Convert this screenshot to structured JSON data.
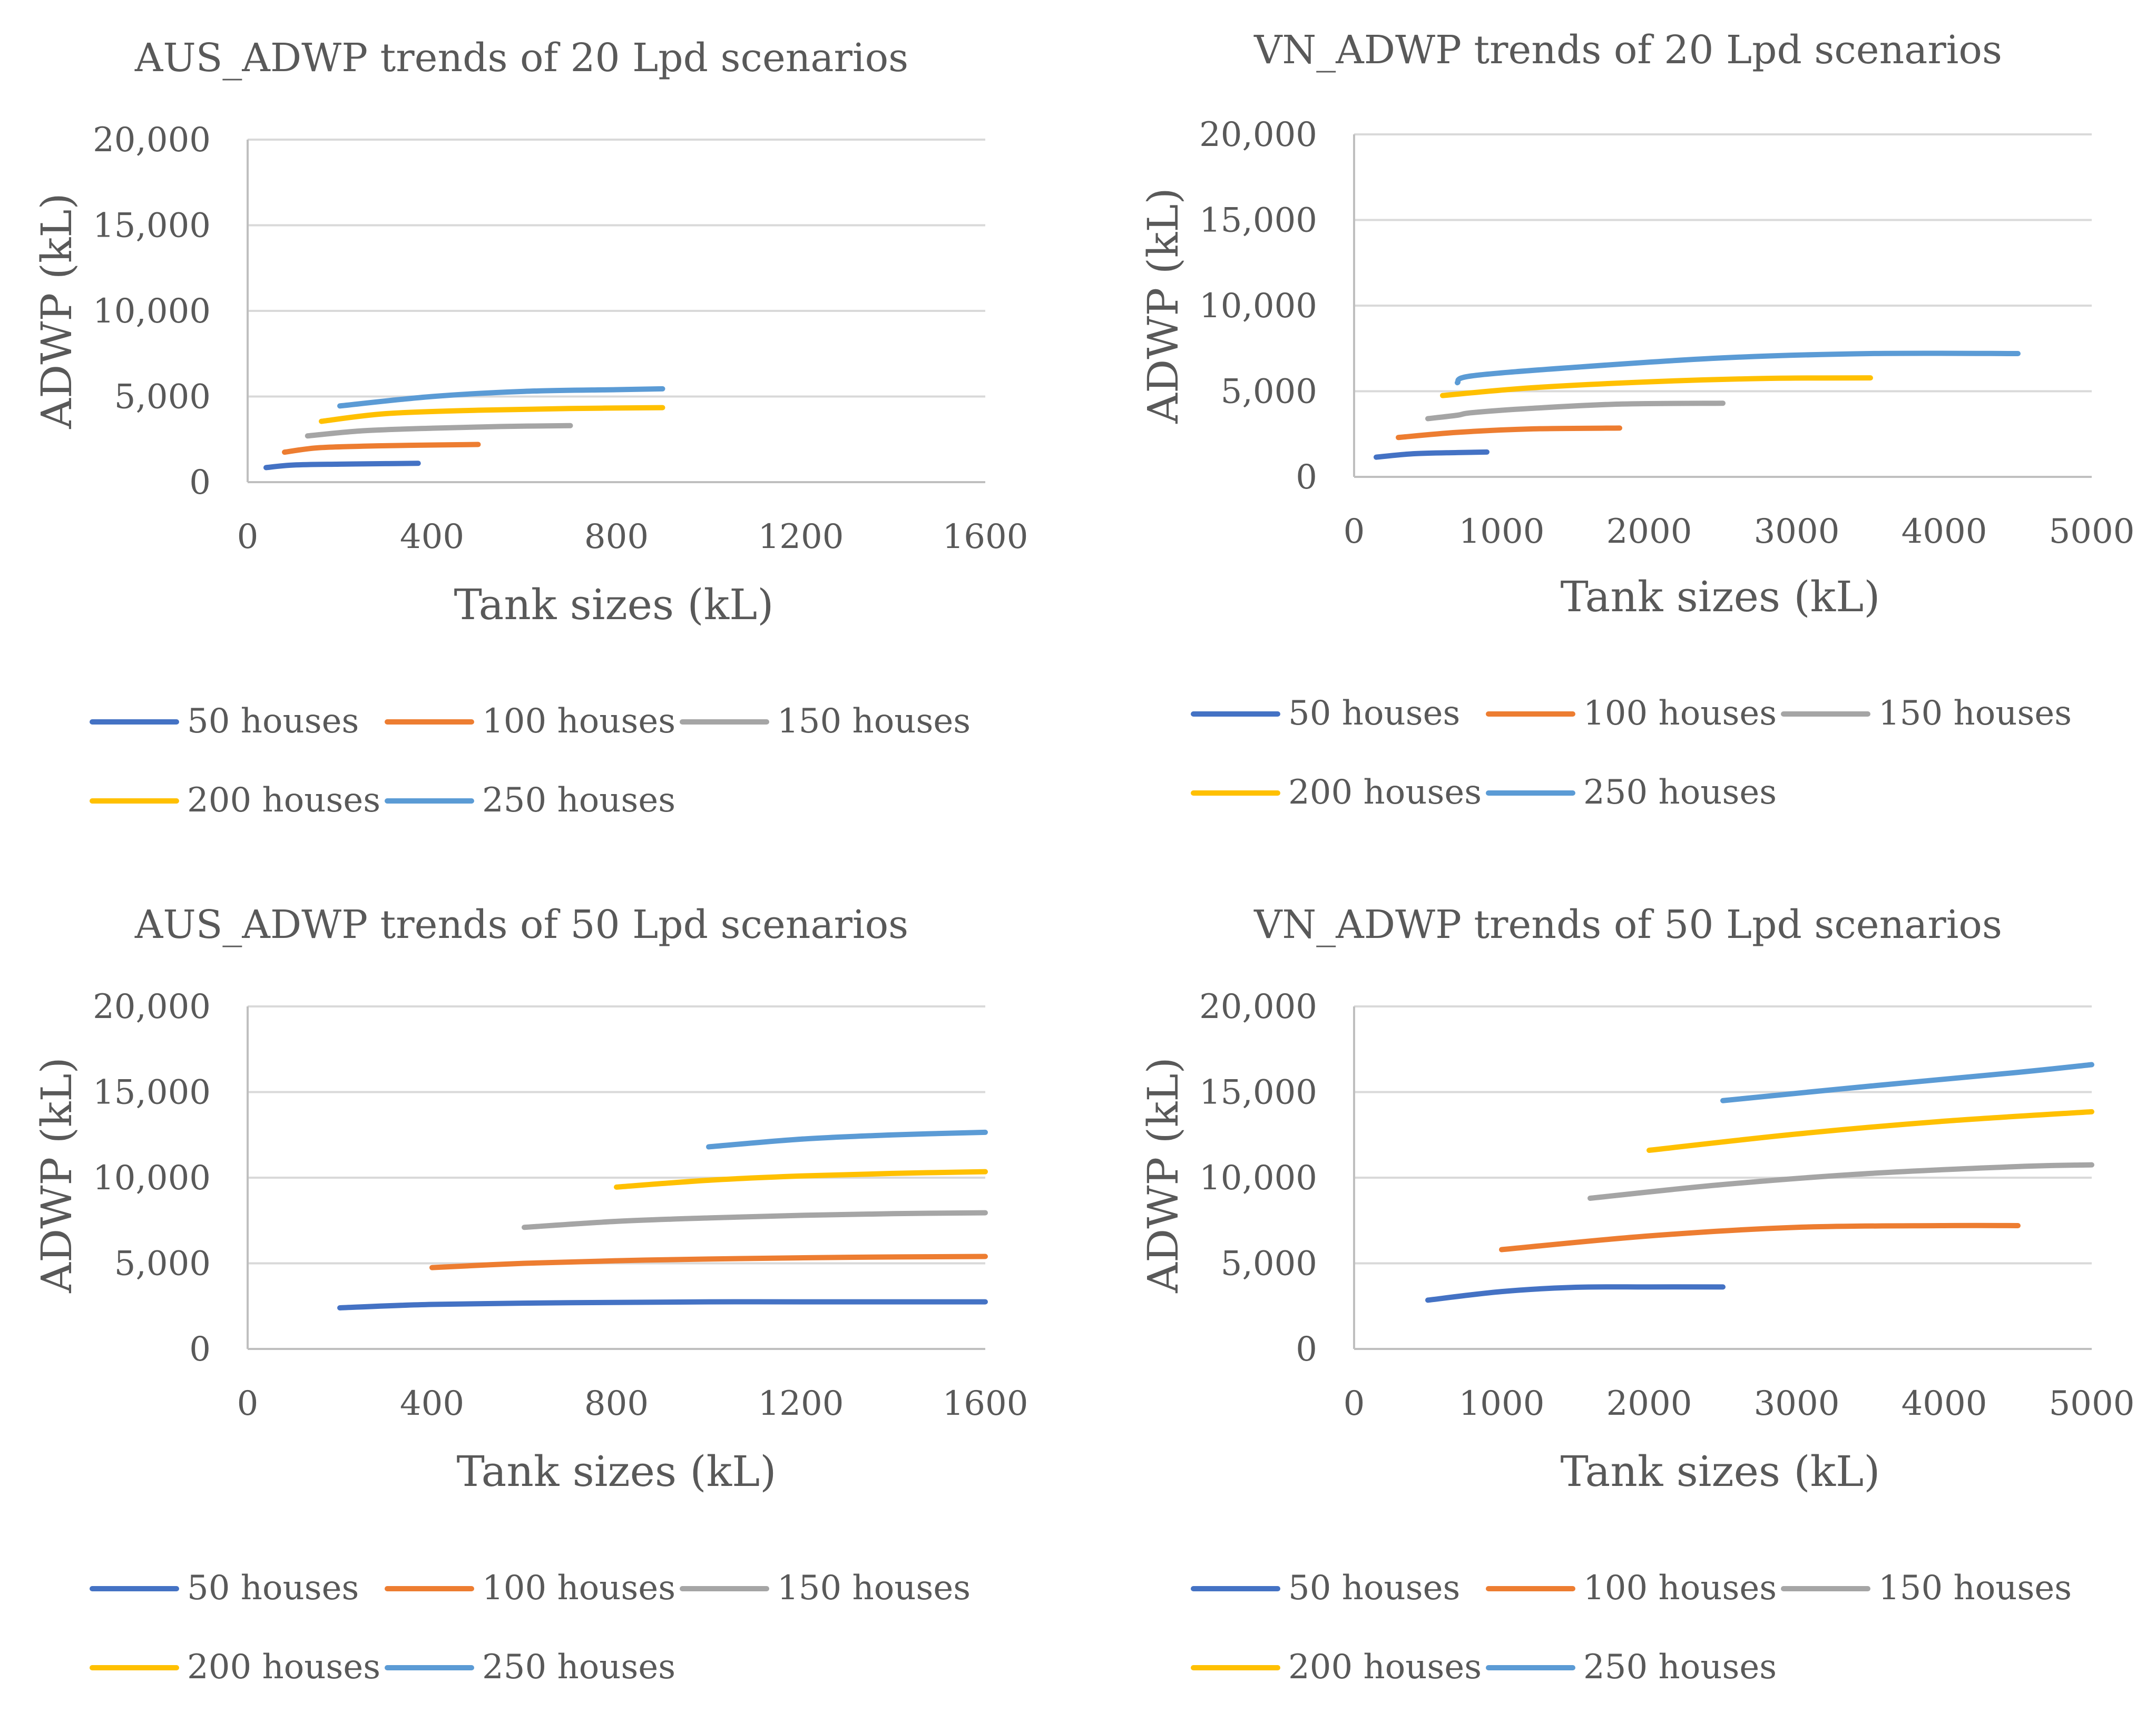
{
  "chart_data": [
    {
      "type": "line",
      "title": "AUS_ADWP trends of 20 Lpd scenarios",
      "xlabel": "Tank sizes (kL)",
      "ylabel": "ADWP (kL)",
      "xlim": [
        0,
        1600
      ],
      "ylim": [
        0,
        20000
      ],
      "xticks": [
        0,
        400,
        800,
        1200,
        1600
      ],
      "xtick_labels": [
        "0",
        "400",
        "800",
        "1200",
        "1600"
      ],
      "yticks": [
        0,
        5000,
        10000,
        15000,
        20000
      ],
      "ytick_labels": [
        "0",
        "5,000",
        "10,000",
        "15,000",
        "20,000"
      ],
      "legend": "bottom",
      "series": [
        {
          "name": "50 houses",
          "color": "#4472C4",
          "x": [
            40,
            100,
            200,
            300,
            370
          ],
          "y": [
            850,
            1000,
            1050,
            1080,
            1100
          ]
        },
        {
          "name": "100 houses",
          "color": "#ED7D31",
          "x": [
            80,
            150,
            250,
            350,
            500
          ],
          "y": [
            1750,
            2000,
            2100,
            2150,
            2200
          ]
        },
        {
          "name": "150 houses",
          "color": "#A5A5A5",
          "x": [
            130,
            250,
            400,
            550,
            700
          ],
          "y": [
            2700,
            3000,
            3150,
            3250,
            3300
          ]
        },
        {
          "name": "200 houses",
          "color": "#FFC000",
          "x": [
            160,
            300,
            500,
            700,
            900
          ],
          "y": [
            3550,
            4000,
            4200,
            4300,
            4350
          ]
        },
        {
          "name": "250 houses",
          "color": "#5B9BD5",
          "x": [
            200,
            400,
            600,
            800,
            900
          ],
          "y": [
            4450,
            5000,
            5300,
            5400,
            5450
          ]
        }
      ]
    },
    {
      "type": "line",
      "title": "VN_ADWP trends of 20 Lpd scenarios",
      "xlabel": "Tank sizes (kL)",
      "ylabel": "ADWP (kL)",
      "xlim": [
        0,
        5000
      ],
      "ylim": [
        0,
        20000
      ],
      "xticks": [
        0,
        1000,
        2000,
        3000,
        4000,
        5000
      ],
      "xtick_labels": [
        "0",
        "1000",
        "2000",
        "3000",
        "4000",
        "5000"
      ],
      "yticks": [
        0,
        5000,
        10000,
        15000,
        20000
      ],
      "ytick_labels": [
        "0",
        "5,000",
        "10,000",
        "15,000",
        "20,000"
      ],
      "legend": "bottom",
      "series": [
        {
          "name": "50 houses",
          "color": "#4472C4",
          "x": [
            150,
            400,
            700,
            900
          ],
          "y": [
            1150,
            1350,
            1420,
            1450
          ]
        },
        {
          "name": "100 houses",
          "color": "#ED7D31",
          "x": [
            300,
            700,
            1200,
            1800
          ],
          "y": [
            2300,
            2600,
            2800,
            2850
          ]
        },
        {
          "name": "150 houses",
          "color": "#A5A5A5",
          "x": [
            500,
            700,
            800,
            1200,
            1800,
            2500
          ],
          "y": [
            3400,
            3600,
            3750,
            4000,
            4250,
            4300
          ]
        },
        {
          "name": "200 houses",
          "color": "#FFC000",
          "x": [
            600,
            1200,
            2000,
            2800,
            3500
          ],
          "y": [
            4750,
            5200,
            5550,
            5750,
            5780
          ]
        },
        {
          "name": "250 houses",
          "color": "#5B9BD5",
          "x": [
            700,
            800,
            1500,
            2500,
            3500,
            4500
          ],
          "y": [
            5500,
            5900,
            6400,
            6950,
            7200,
            7200
          ]
        }
      ]
    },
    {
      "type": "line",
      "title": "AUS_ADWP trends of 50 Lpd scenarios",
      "xlabel": "Tank sizes (kL)",
      "ylabel": "ADWP (kL)",
      "xlim": [
        0,
        1600
      ],
      "ylim": [
        0,
        20000
      ],
      "xticks": [
        0,
        400,
        800,
        1200,
        1600
      ],
      "xtick_labels": [
        "0",
        "400",
        "800",
        "1200",
        "1600"
      ],
      "yticks": [
        0,
        5000,
        10000,
        15000,
        20000
      ],
      "ytick_labels": [
        "0",
        "5,000",
        "10,000",
        "15,000",
        "20,000"
      ],
      "legend": "bottom",
      "series": [
        {
          "name": "50 houses",
          "color": "#4472C4",
          "x": [
            200,
            400,
            700,
            1000,
            1300,
            1600
          ],
          "y": [
            2400,
            2600,
            2700,
            2750,
            2750,
            2750
          ]
        },
        {
          "name": "100 houses",
          "color": "#ED7D31",
          "x": [
            400,
            600,
            800,
            1000,
            1300,
            1600
          ],
          "y": [
            4750,
            5000,
            5150,
            5250,
            5350,
            5400
          ]
        },
        {
          "name": "150 houses",
          "color": "#A5A5A5",
          "x": [
            600,
            800,
            1000,
            1200,
            1400,
            1600
          ],
          "y": [
            7100,
            7450,
            7650,
            7800,
            7900,
            7950
          ]
        },
        {
          "name": "200 houses",
          "color": "#FFC000",
          "x": [
            800,
            1000,
            1200,
            1400,
            1600
          ],
          "y": [
            9450,
            9850,
            10100,
            10250,
            10350
          ]
        },
        {
          "name": "250 houses",
          "color": "#5B9BD5",
          "x": [
            1000,
            1200,
            1400,
            1600
          ],
          "y": [
            11800,
            12250,
            12500,
            12650
          ]
        }
      ]
    },
    {
      "type": "line",
      "title": "VN_ADWP trends of 50 Lpd scenarios",
      "xlabel": "Tank sizes (kL)",
      "ylabel": "ADWP (kL)",
      "xlim": [
        0,
        5000
      ],
      "ylim": [
        0,
        20000
      ],
      "xticks": [
        0,
        1000,
        2000,
        3000,
        4000,
        5000
      ],
      "xtick_labels": [
        "0",
        "1000",
        "2000",
        "3000",
        "4000",
        "5000"
      ],
      "yticks": [
        0,
        5000,
        10000,
        15000,
        20000
      ],
      "ytick_labels": [
        "0",
        "5,000",
        "10,000",
        "15,000",
        "20,000"
      ],
      "legend": "bottom",
      "series": [
        {
          "name": "50 houses",
          "color": "#4472C4",
          "x": [
            500,
            1000,
            1500,
            2000,
            2500
          ],
          "y": [
            2850,
            3350,
            3600,
            3620,
            3620
          ]
        },
        {
          "name": "100 houses",
          "color": "#ED7D31",
          "x": [
            1000,
            2000,
            3000,
            4000,
            4500
          ],
          "y": [
            5800,
            6600,
            7100,
            7200,
            7200
          ]
        },
        {
          "name": "150 houses",
          "color": "#A5A5A5",
          "x": [
            1600,
            2500,
            3500,
            4500,
            5000
          ],
          "y": [
            8800,
            9600,
            10250,
            10650,
            10750
          ]
        },
        {
          "name": "200 houses",
          "color": "#FFC000",
          "x": [
            2000,
            3000,
            4000,
            5000
          ],
          "y": [
            11600,
            12550,
            13300,
            13850
          ]
        },
        {
          "name": "250 houses",
          "color": "#5B9BD5",
          "x": [
            2500,
            3500,
            4500,
            5000
          ],
          "y": [
            14500,
            15350,
            16150,
            16600
          ]
        }
      ]
    }
  ]
}
